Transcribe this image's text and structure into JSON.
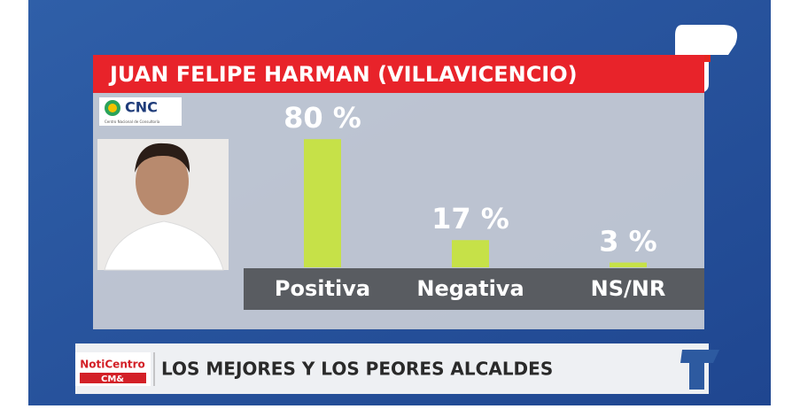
{
  "chart_data": {
    "type": "bar",
    "title": "JUAN FELIPE HARMAN (VILLAVICENCIO)",
    "categories": [
      "Positiva",
      "Negativa",
      "NS/NR"
    ],
    "values": [
      80,
      17,
      3
    ],
    "value_labels": [
      "80 %",
      "17 %",
      "3 %"
    ],
    "color": "#c6e148"
  },
  "logo": {
    "name": "CNC",
    "subtitle": "Centro Nacional de Consultoría"
  },
  "ticker": {
    "brand": "NotiCentro",
    "brand_sub": "CM&",
    "headline": "LOS MEJORES Y LOS PEORES ALCALDES"
  }
}
